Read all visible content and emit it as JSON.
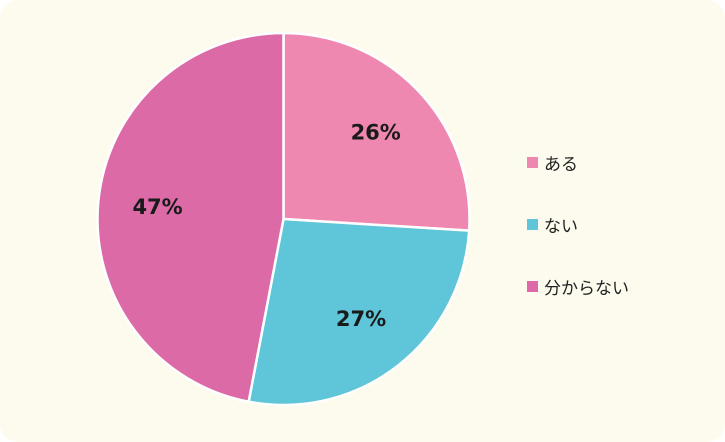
{
  "chart_data": {
    "type": "pie",
    "categories": [
      "ある",
      "ない",
      "分からない"
    ],
    "values": [
      26,
      27,
      47
    ],
    "labels": [
      "26%",
      "27%",
      "47%"
    ],
    "colors": [
      "#ee88b0",
      "#5fc5d8",
      "#db6aa7"
    ],
    "legend_position": "right"
  },
  "legend": {
    "items": [
      {
        "label": "ある",
        "color": "#ee88b0"
      },
      {
        "label": "ない",
        "color": "#5fc5d8"
      },
      {
        "label": "分からない",
        "color": "#db6aa7"
      }
    ]
  }
}
